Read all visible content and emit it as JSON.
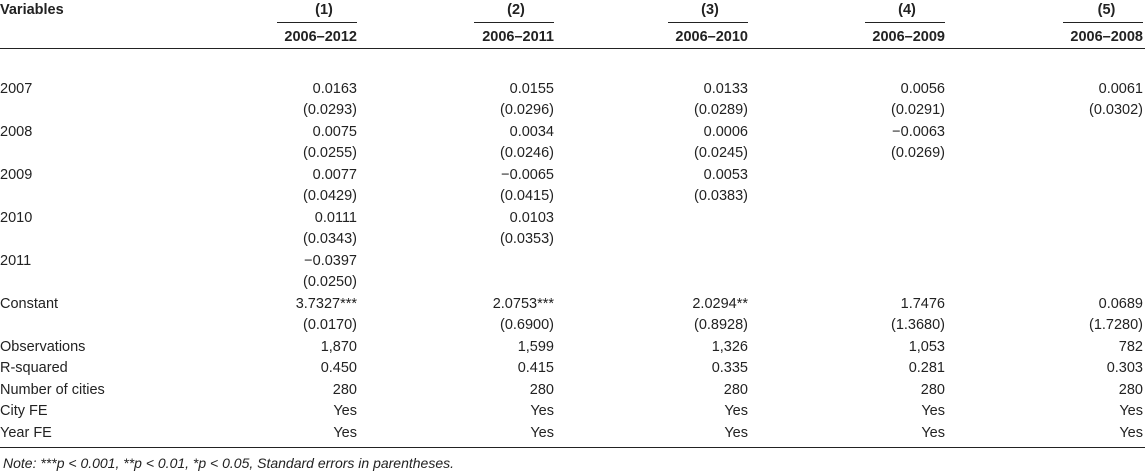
{
  "table": {
    "var_header": "Variables",
    "models": [
      {
        "num": "(1)",
        "period": "2006–2012"
      },
      {
        "num": "(2)",
        "period": "2006–2011"
      },
      {
        "num": "(3)",
        "period": "2006–2010"
      },
      {
        "num": "(4)",
        "period": "2006–2009"
      },
      {
        "num": "(5)",
        "period": "2006–2008"
      }
    ],
    "rows": [
      {
        "label": "2007",
        "cells": [
          "0.0163",
          "0.0155",
          "0.0133",
          "0.0056",
          "0.0061"
        ]
      },
      {
        "label": "",
        "cells": [
          "(0.0293)",
          "(0.0296)",
          "(0.0289)",
          "(0.0291)",
          "(0.0302)"
        ]
      },
      {
        "label": "2008",
        "cells": [
          "0.0075",
          "0.0034",
          "0.0006",
          "−0.0063",
          ""
        ]
      },
      {
        "label": "",
        "cells": [
          "(0.0255)",
          "(0.0246)",
          "(0.0245)",
          "(0.0269)",
          ""
        ]
      },
      {
        "label": "2009",
        "cells": [
          "0.0077",
          "−0.0065",
          "0.0053",
          "",
          ""
        ]
      },
      {
        "label": "",
        "cells": [
          "(0.0429)",
          "(0.0415)",
          "(0.0383)",
          "",
          ""
        ]
      },
      {
        "label": "2010",
        "cells": [
          "0.0111",
          "0.0103",
          "",
          "",
          ""
        ]
      },
      {
        "label": "",
        "cells": [
          "(0.0343)",
          "(0.0353)",
          "",
          "",
          ""
        ]
      },
      {
        "label": "2011",
        "cells": [
          "−0.0397",
          "",
          "",
          "",
          ""
        ]
      },
      {
        "label": "",
        "cells": [
          "(0.0250)",
          "",
          "",
          "",
          ""
        ]
      },
      {
        "label": "Constant",
        "cells": [
          "3.7327***",
          "2.0753***",
          "2.0294**",
          "1.7476",
          "0.0689"
        ]
      },
      {
        "label": "",
        "cells": [
          "(0.0170)",
          "(0.6900)",
          "(0.8928)",
          "(1.3680)",
          "(1.7280)"
        ]
      },
      {
        "label": "Observations",
        "cells": [
          "1,870",
          "1,599",
          "1,326",
          "1,053",
          "782"
        ]
      },
      {
        "label": "R-squared",
        "cells": [
          "0.450",
          "0.415",
          "0.335",
          "0.281",
          "0.303"
        ]
      },
      {
        "label": "Number of cities",
        "cells": [
          "280",
          "280",
          "280",
          "280",
          "280"
        ]
      },
      {
        "label": "City FE",
        "cells": [
          "Yes",
          "Yes",
          "Yes",
          "Yes",
          "Yes"
        ]
      },
      {
        "label": "Year FE",
        "cells": [
          "Yes",
          "Yes",
          "Yes",
          "Yes",
          "Yes"
        ]
      }
    ]
  },
  "note": "Note: ***p < 0.001, **p < 0.01, *p < 0.05, Standard errors in parentheses."
}
